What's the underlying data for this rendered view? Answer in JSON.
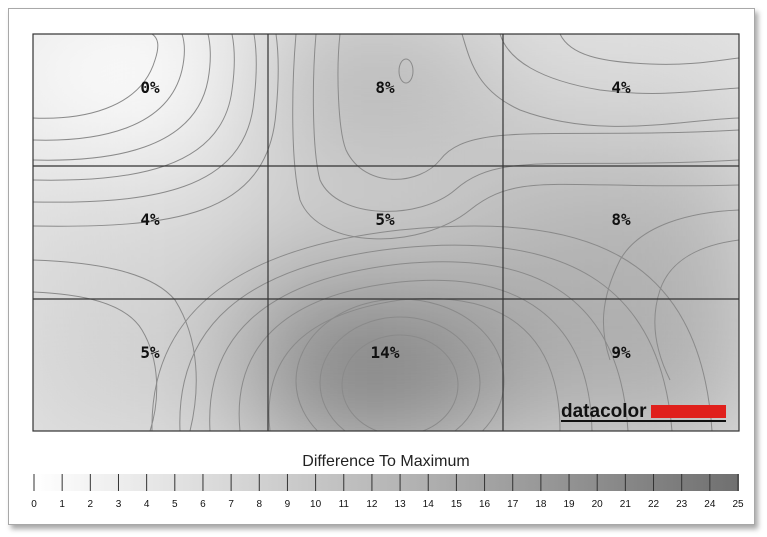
{
  "chart_data": {
    "type": "heatmap",
    "title": "",
    "rows": 3,
    "columns": 3,
    "cells": [
      [
        "0%",
        "8%",
        "4%"
      ],
      [
        "4%",
        "5%",
        "8%"
      ],
      [
        "5%",
        "14%",
        "9%"
      ]
    ],
    "values": [
      [
        0,
        8,
        4
      ],
      [
        4,
        5,
        8
      ],
      [
        5,
        14,
        9
      ]
    ],
    "unit": "%",
    "scale": {
      "title": "Difference To Maximum",
      "min": 0,
      "max": 25,
      "ticks": [
        "0",
        "1",
        "2",
        "3",
        "4",
        "5",
        "6",
        "7",
        "8",
        "9",
        "10",
        "11",
        "12",
        "13",
        "14",
        "15",
        "16",
        "17",
        "18",
        "19",
        "20",
        "21",
        "22",
        "23",
        "24",
        "25"
      ]
    },
    "contour_lines": true,
    "grid": true
  },
  "branding": {
    "logo_text": "datacolor",
    "accent_color": "#e0201c"
  },
  "colors": {
    "white": "#ffffff",
    "max_gray": "#777777",
    "line": "#808080",
    "grid": "#333333"
  }
}
